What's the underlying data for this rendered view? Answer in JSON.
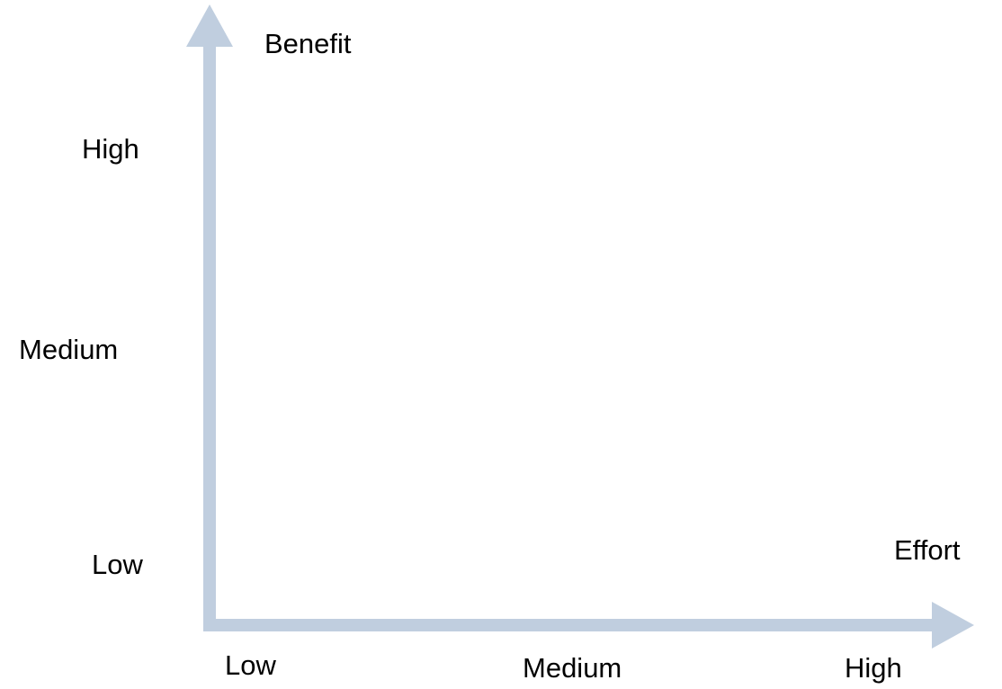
{
  "diagram": {
    "axis_color": "#C0CEDF",
    "y_axis": {
      "title": "Benefit",
      "levels": [
        "High",
        "Medium",
        "Low"
      ]
    },
    "x_axis": {
      "title": "Effort",
      "levels": [
        "Low",
        "Medium",
        "High"
      ]
    }
  }
}
